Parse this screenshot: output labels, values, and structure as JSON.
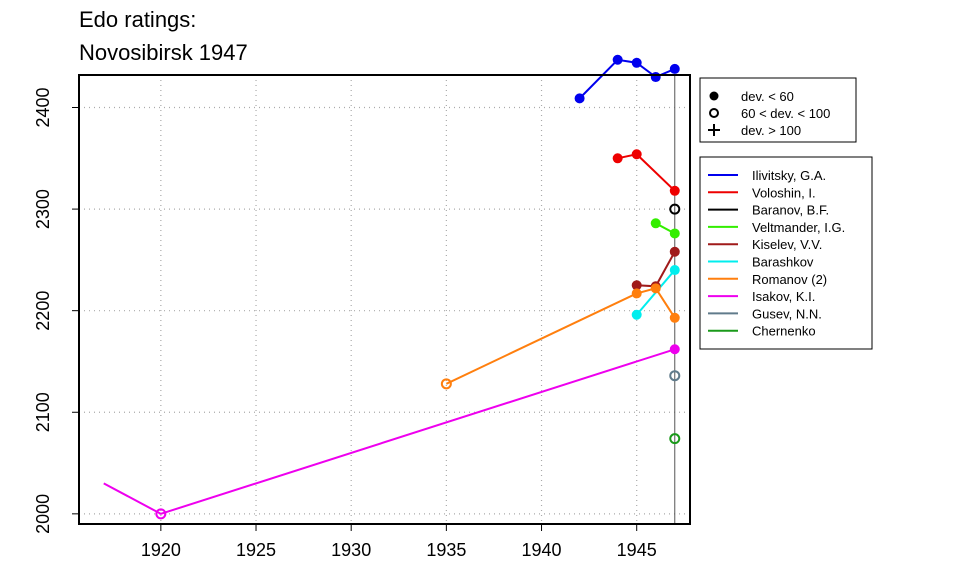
{
  "chart_data": {
    "type": "line",
    "title_lines": [
      "Edo ratings:",
      "Novosibirsk 1947"
    ],
    "xlabel": "",
    "ylabel": "",
    "xlim": [
      1915.7,
      1947.8
    ],
    "ylim": [
      1990,
      2432
    ],
    "x_ticks": [
      1920,
      1925,
      1930,
      1935,
      1940,
      1945
    ],
    "y_ticks": [
      2000,
      2100,
      2200,
      2300,
      2400
    ],
    "grid": true,
    "reference_line_x": 1947,
    "marker_legend": [
      {
        "symbol": "filled-circle",
        "label": "dev. < 60"
      },
      {
        "symbol": "open-circle",
        "label": "60 < dev. < 100"
      },
      {
        "symbol": "plus",
        "label": "dev. > 100"
      }
    ],
    "series": [
      {
        "name": "Ilivitsky, G.A.",
        "color": "#0000ee",
        "points": [
          {
            "x": 1942,
            "y": 2409,
            "m": "filled"
          },
          {
            "x": 1944,
            "y": 2447,
            "m": "filled"
          },
          {
            "x": 1945,
            "y": 2444,
            "m": "filled"
          },
          {
            "x": 1946,
            "y": 2430,
            "m": "filled"
          },
          {
            "x": 1947,
            "y": 2438,
            "m": "filled"
          }
        ]
      },
      {
        "name": "Voloshin, I.",
        "color": "#ee0000",
        "points": [
          {
            "x": 1944,
            "y": 2350,
            "m": "filled"
          },
          {
            "x": 1945,
            "y": 2354,
            "m": "filled"
          },
          {
            "x": 1947,
            "y": 2318,
            "m": "filled"
          }
        ]
      },
      {
        "name": "Baranov, B.F.",
        "color": "#000000",
        "points": [
          {
            "x": 1947,
            "y": 2300,
            "m": "open"
          }
        ]
      },
      {
        "name": "Veltmander, I.G.",
        "color": "#33ee00",
        "points": [
          {
            "x": 1946,
            "y": 2286,
            "m": "filled"
          },
          {
            "x": 1947,
            "y": 2276,
            "m": "filled"
          }
        ]
      },
      {
        "name": "Kiselev, V.V.",
        "color": "#a01a1a",
        "points": [
          {
            "x": 1945,
            "y": 2225,
            "m": "filled"
          },
          {
            "x": 1946,
            "y": 2224,
            "m": "filled"
          },
          {
            "x": 1947,
            "y": 2258,
            "m": "filled"
          }
        ]
      },
      {
        "name": "Barashkov",
        "color": "#00eeee",
        "points": [
          {
            "x": 1945,
            "y": 2196,
            "m": "filled"
          },
          {
            "x": 1947,
            "y": 2240,
            "m": "filled"
          }
        ]
      },
      {
        "name": "Romanov (2)",
        "color": "#ff7f0e",
        "points": [
          {
            "x": 1935,
            "y": 2128,
            "m": "open"
          },
          {
            "x": 1945,
            "y": 2217,
            "m": "filled"
          },
          {
            "x": 1946,
            "y": 2222,
            "m": "filled"
          },
          {
            "x": 1947,
            "y": 2193,
            "m": "filled"
          }
        ]
      },
      {
        "name": "Isakov, K.I.",
        "color": "#ee00ee",
        "points": [
          {
            "x": 1917,
            "y": 2030,
            "m": "none"
          },
          {
            "x": 1920,
            "y": 2000,
            "m": "open"
          },
          {
            "x": 1947,
            "y": 2162,
            "m": "filled"
          }
        ]
      },
      {
        "name": "Gusev, N.N.",
        "color": "#607b8b",
        "points": [
          {
            "x": 1947,
            "y": 2136,
            "m": "open"
          }
        ]
      },
      {
        "name": "Chernenko",
        "color": "#1a9a1a",
        "points": [
          {
            "x": 1947,
            "y": 2074,
            "m": "open"
          }
        ]
      }
    ]
  }
}
